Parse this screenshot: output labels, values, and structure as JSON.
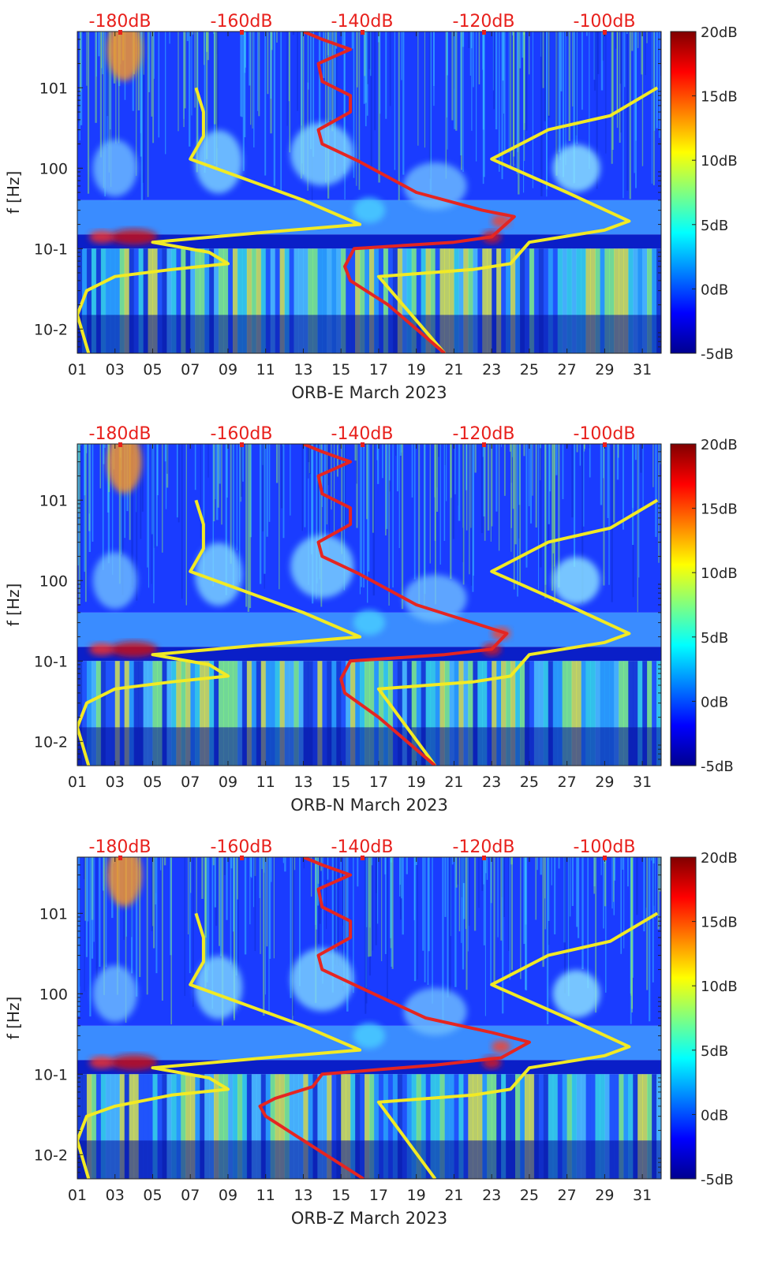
{
  "chart_data": [
    {
      "type": "heatmap",
      "xlabel": "ORB-E March 2023",
      "ylabel": "f [Hz]",
      "x_ticks": [
        "01",
        "03",
        "05",
        "07",
        "09",
        "11",
        "13",
        "15",
        "17",
        "19",
        "21",
        "23",
        "25",
        "27",
        "29",
        "31"
      ],
      "y_ticks": [
        "10-2",
        "10-1",
        "100",
        "101"
      ],
      "y_scale": "log",
      "ylim": [
        0.005,
        50
      ],
      "xlim": [
        1,
        32
      ],
      "colorbar": {
        "ticks": [
          "20dB",
          "15dB",
          "10dB",
          "5dB",
          "0dB",
          "-5dB"
        ],
        "range": [
          -5,
          20
        ]
      },
      "top_axis": {
        "ticks": [
          "-180dB",
          "-160dB",
          "-140dB",
          "-120dB",
          "-100dB"
        ],
        "color": "#e8201c"
      },
      "series": [
        {
          "color": "#f2ea24",
          "points": [
            [
              1.6,
              0.005
            ],
            [
              1.0,
              0.015
            ],
            [
              1.5,
              0.03
            ],
            [
              3,
              0.045
            ],
            [
              6,
              0.055
            ],
            [
              9,
              0.065
            ],
            [
              8,
              0.09
            ],
            [
              5,
              0.12
            ],
            [
              11,
              0.16
            ],
            [
              16,
              0.2
            ],
            [
              13,
              0.4
            ],
            [
              7,
              1.3
            ],
            [
              7.7,
              2.5
            ],
            [
              7.7,
              5
            ],
            [
              7.3,
              10
            ]
          ]
        },
        {
          "color": "#f2ea24",
          "points": [
            [
              20.5,
              0.005
            ],
            [
              17,
              0.045
            ],
            [
              22,
              0.055
            ],
            [
              24,
              0.065
            ],
            [
              25,
              0.12
            ],
            [
              29,
              0.17
            ],
            [
              30.3,
              0.22
            ],
            [
              27,
              0.5
            ],
            [
              23,
              1.3
            ],
            [
              26,
              3
            ],
            [
              29.3,
              4.5
            ],
            [
              31.8,
              10
            ]
          ]
        },
        {
          "color": "#e52521",
          "points": [
            [
              20.5,
              0.005
            ],
            [
              17.5,
              0.02
            ],
            [
              15.5,
              0.04
            ],
            [
              15.2,
              0.06
            ],
            [
              15.7,
              0.1
            ],
            [
              21,
              0.12
            ],
            [
              23,
              0.14
            ],
            [
              24.2,
              0.25
            ],
            [
              22.5,
              0.3
            ],
            [
              19,
              0.5
            ],
            [
              16,
              1.2
            ],
            [
              14,
              2
            ],
            [
              13.8,
              3
            ],
            [
              15.5,
              5
            ],
            [
              15.5,
              8
            ],
            [
              14,
              12
            ],
            [
              13.8,
              20
            ],
            [
              15.5,
              30
            ],
            [
              14,
              40
            ],
            [
              13,
              50
            ]
          ]
        }
      ]
    },
    {
      "type": "heatmap",
      "xlabel": "ORB-N March 2023",
      "ylabel": "f [Hz]",
      "x_ticks": [
        "01",
        "03",
        "05",
        "07",
        "09",
        "11",
        "13",
        "15",
        "17",
        "19",
        "21",
        "23",
        "25",
        "27",
        "29",
        "31"
      ],
      "y_ticks": [
        "10-2",
        "10-1",
        "100",
        "101"
      ],
      "y_scale": "log",
      "ylim": [
        0.005,
        50
      ],
      "xlim": [
        1,
        32
      ],
      "colorbar": {
        "ticks": [
          "20dB",
          "15dB",
          "10dB",
          "5dB",
          "0dB",
          "-5dB"
        ],
        "range": [
          -5,
          20
        ]
      },
      "top_axis": {
        "ticks": [
          "-180dB",
          "-160dB",
          "-140dB",
          "-120dB",
          "-100dB"
        ],
        "color": "#e8201c"
      },
      "series": [
        {
          "color": "#f2ea24",
          "points": [
            [
              1.6,
              0.005
            ],
            [
              1.0,
              0.015
            ],
            [
              1.5,
              0.03
            ],
            [
              3,
              0.045
            ],
            [
              6,
              0.055
            ],
            [
              9,
              0.065
            ],
            [
              8,
              0.09
            ],
            [
              5,
              0.12
            ],
            [
              11,
              0.16
            ],
            [
              16,
              0.2
            ],
            [
              13,
              0.4
            ],
            [
              7,
              1.3
            ],
            [
              7.7,
              2.5
            ],
            [
              7.7,
              5
            ],
            [
              7.3,
              10
            ]
          ]
        },
        {
          "color": "#f2ea24",
          "points": [
            [
              20,
              0.005
            ],
            [
              17,
              0.045
            ],
            [
              22,
              0.055
            ],
            [
              24,
              0.065
            ],
            [
              25,
              0.12
            ],
            [
              29,
              0.17
            ],
            [
              30.3,
              0.22
            ],
            [
              27,
              0.5
            ],
            [
              23,
              1.3
            ],
            [
              26,
              3
            ],
            [
              29.3,
              4.5
            ],
            [
              31.8,
              10
            ]
          ]
        },
        {
          "color": "#e52521",
          "points": [
            [
              20,
              0.005
            ],
            [
              17,
              0.02
            ],
            [
              15.2,
              0.04
            ],
            [
              15,
              0.06
            ],
            [
              15.5,
              0.1
            ],
            [
              20.5,
              0.12
            ],
            [
              23,
              0.14
            ],
            [
              23.8,
              0.22
            ],
            [
              22,
              0.3
            ],
            [
              19,
              0.5
            ],
            [
              16,
              1.2
            ],
            [
              14,
              2
            ],
            [
              13.8,
              3
            ],
            [
              15.5,
              5
            ],
            [
              15.5,
              8
            ],
            [
              14,
              12
            ],
            [
              13.8,
              20
            ],
            [
              15.5,
              30
            ],
            [
              14,
              40
            ],
            [
              13,
              50
            ]
          ]
        }
      ]
    },
    {
      "type": "heatmap",
      "xlabel": "ORB-Z March 2023",
      "ylabel": "f [Hz]",
      "x_ticks": [
        "01",
        "03",
        "05",
        "07",
        "09",
        "11",
        "13",
        "15",
        "17",
        "19",
        "21",
        "23",
        "25",
        "27",
        "29",
        "31"
      ],
      "y_ticks": [
        "10-2",
        "10-1",
        "100",
        "101"
      ],
      "y_scale": "log",
      "ylim": [
        0.005,
        50
      ],
      "xlim": [
        1,
        32
      ],
      "colorbar": {
        "ticks": [
          "20dB",
          "15dB",
          "10dB",
          "5dB",
          "0dB",
          "-5dB"
        ],
        "range": [
          -5,
          20
        ]
      },
      "top_axis": {
        "ticks": [
          "-180dB",
          "-160dB",
          "-140dB",
          "-120dB",
          "-100dB"
        ],
        "color": "#e8201c"
      },
      "series": [
        {
          "color": "#f2ea24",
          "points": [
            [
              1.6,
              0.005
            ],
            [
              1.0,
              0.015
            ],
            [
              1.5,
              0.03
            ],
            [
              3,
              0.04
            ],
            [
              6,
              0.055
            ],
            [
              9,
              0.065
            ],
            [
              8,
              0.09
            ],
            [
              5,
              0.12
            ],
            [
              11,
              0.16
            ],
            [
              16,
              0.2
            ],
            [
              13,
              0.4
            ],
            [
              7,
              1.3
            ],
            [
              7.7,
              2.5
            ],
            [
              7.7,
              5
            ],
            [
              7.3,
              10
            ]
          ]
        },
        {
          "color": "#f2ea24",
          "points": [
            [
              20,
              0.005
            ],
            [
              17,
              0.045
            ],
            [
              22,
              0.055
            ],
            [
              24,
              0.065
            ],
            [
              25,
              0.12
            ],
            [
              29,
              0.17
            ],
            [
              30.3,
              0.22
            ],
            [
              27,
              0.5
            ],
            [
              23,
              1.3
            ],
            [
              26,
              3
            ],
            [
              29.3,
              4.5
            ],
            [
              31.8,
              10
            ]
          ]
        },
        {
          "color": "#e52521",
          "points": [
            [
              16.2,
              0.005
            ],
            [
              13,
              0.015
            ],
            [
              11,
              0.03
            ],
            [
              10.7,
              0.04
            ],
            [
              11.5,
              0.05
            ],
            [
              13.5,
              0.07
            ],
            [
              14,
              0.1
            ],
            [
              20,
              0.13
            ],
            [
              23.5,
              0.16
            ],
            [
              25,
              0.25
            ],
            [
              23,
              0.33
            ],
            [
              19.5,
              0.5
            ],
            [
              16,
              1.2
            ],
            [
              14,
              2
            ],
            [
              13.8,
              3
            ],
            [
              15.5,
              5
            ],
            [
              15.5,
              8
            ],
            [
              14,
              12
            ],
            [
              13.8,
              20
            ],
            [
              15.5,
              30
            ],
            [
              14,
              40
            ],
            [
              13,
              50
            ]
          ]
        }
      ]
    }
  ]
}
